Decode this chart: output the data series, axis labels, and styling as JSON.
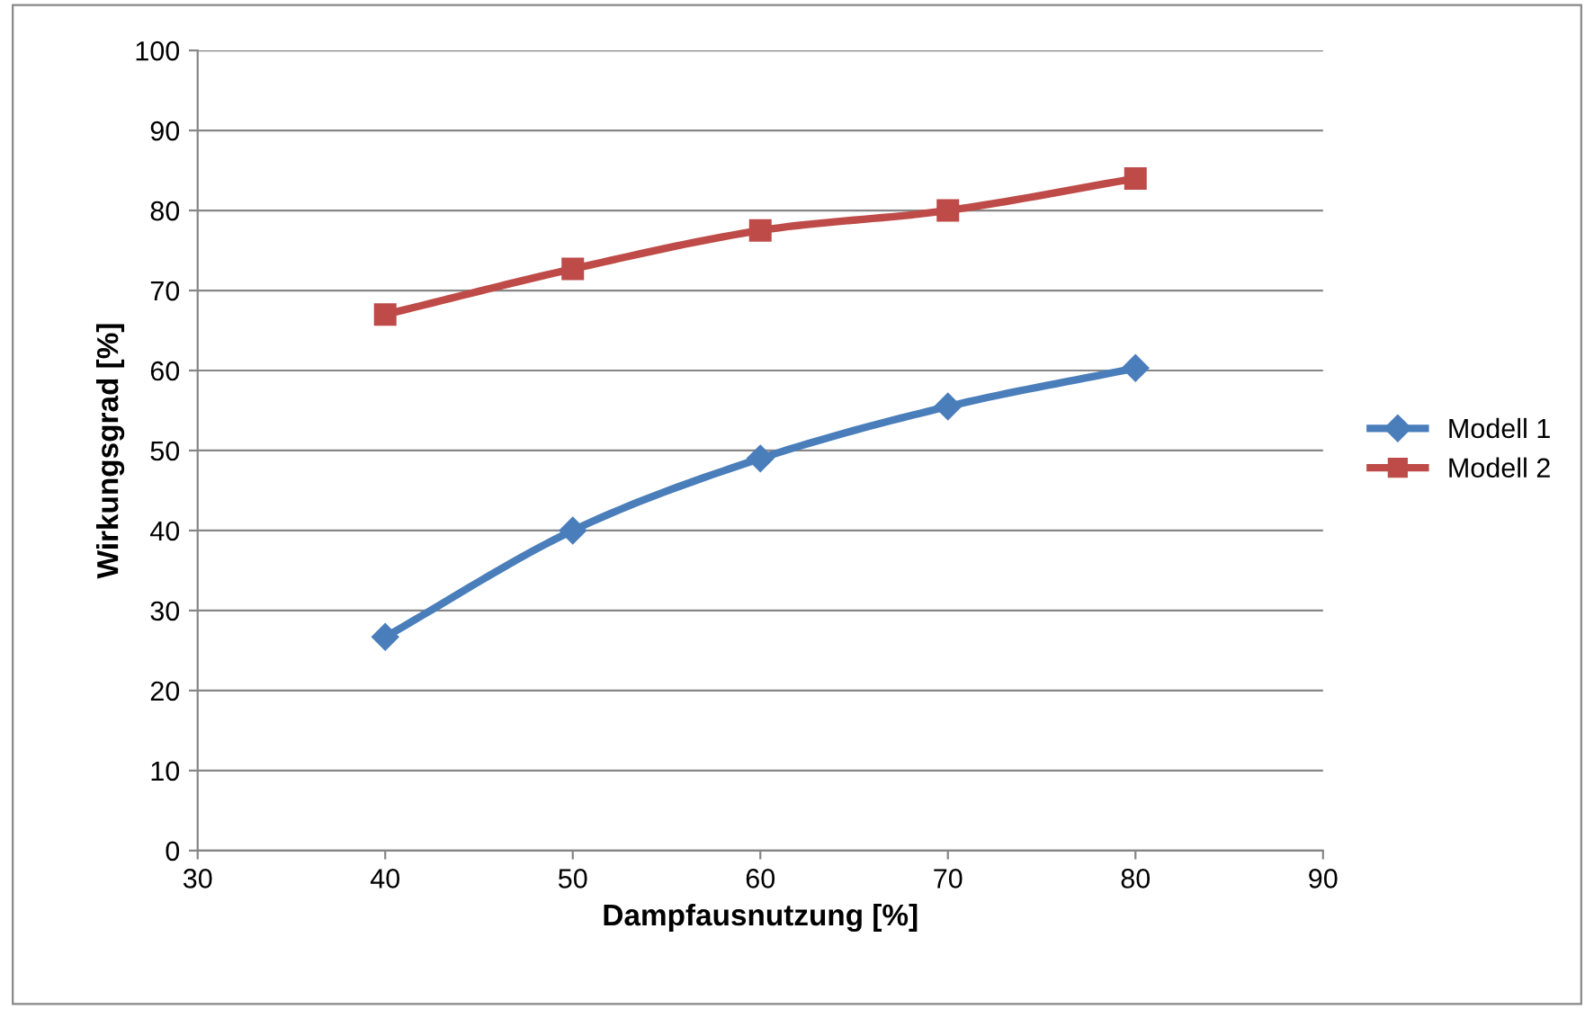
{
  "chart_data": {
    "type": "line",
    "xlabel": "Dampfausnutzung [%]",
    "ylabel": "Wirkungsgrad [%]",
    "x": [
      40,
      50,
      60,
      70,
      80
    ],
    "series": [
      {
        "name": "Modell 1",
        "color": "#4a7ebb",
        "marker": "diamond",
        "values": [
          26.7,
          40,
          49,
          55.5,
          60.3
        ]
      },
      {
        "name": "Modell 2",
        "color": "#be4b48",
        "marker": "square",
        "values": [
          67,
          72.7,
          77.5,
          80,
          84
        ]
      }
    ],
    "xlim": [
      30,
      90
    ],
    "xticks": [
      30,
      40,
      50,
      60,
      70,
      80,
      90
    ],
    "ylim": [
      0,
      100
    ],
    "yticks": [
      0,
      10,
      20,
      30,
      40,
      50,
      60,
      70,
      80,
      90,
      100
    ],
    "grid": "y",
    "legend": "right",
    "line_style": "solid"
  }
}
